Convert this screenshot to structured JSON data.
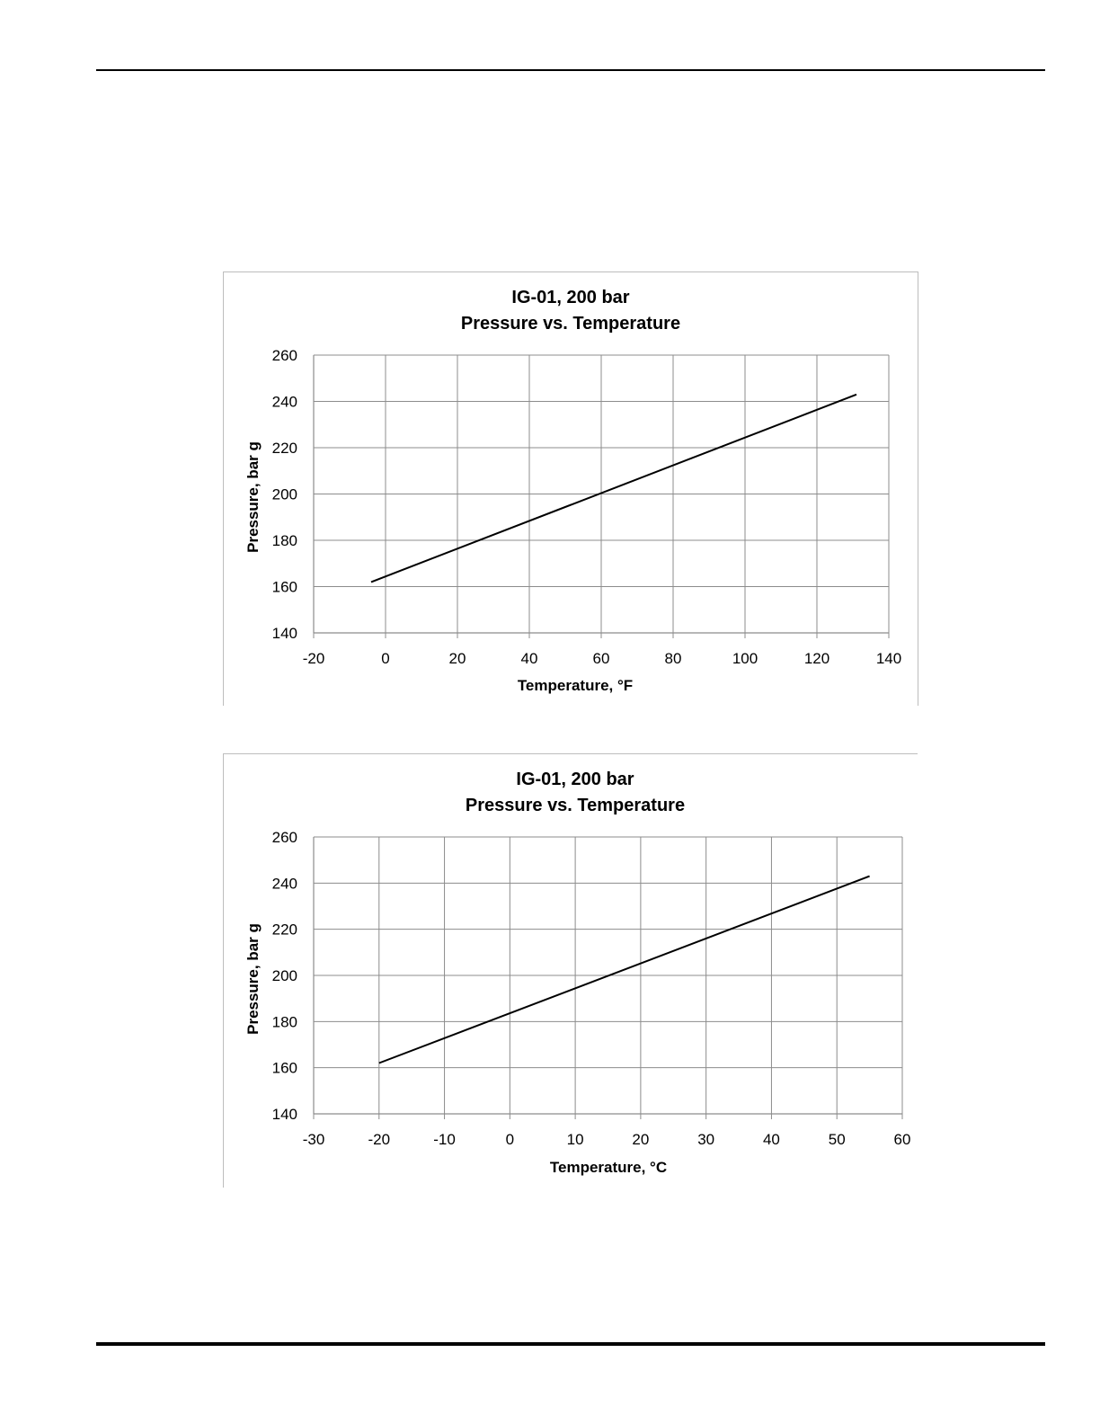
{
  "chart_data": [
    {
      "type": "line",
      "title": "IG-01, 200 bar",
      "subtitle": "Pressure vs. Temperature",
      "xlabel": "Temperature,  °F",
      "ylabel": "Pressure, bar g",
      "xlim": [
        -20,
        140
      ],
      "ylim": [
        140,
        260
      ],
      "xticks": [
        -20,
        0,
        20,
        40,
        60,
        80,
        100,
        120,
        140
      ],
      "yticks": [
        140,
        160,
        180,
        200,
        220,
        240,
        260
      ],
      "grid": true,
      "legend": "none",
      "series": [
        {
          "x": [
            -4,
            131
          ],
          "y": [
            162,
            243
          ],
          "color": "#000000"
        }
      ]
    },
    {
      "type": "line",
      "title": "IG-01, 200 bar",
      "subtitle": "Pressure vs. Temperature",
      "xlabel": "Temperature,  °C",
      "ylabel": "Pressure, bar g",
      "xlim": [
        -30,
        60
      ],
      "ylim": [
        140,
        260
      ],
      "xticks": [
        -30,
        -20,
        -10,
        0,
        10,
        20,
        30,
        40,
        50,
        60
      ],
      "yticks": [
        140,
        160,
        180,
        200,
        220,
        240,
        260
      ],
      "grid": true,
      "legend": "none",
      "series": [
        {
          "x": [
            -20,
            55
          ],
          "y": [
            162,
            243
          ],
          "color": "#000000"
        }
      ]
    }
  ]
}
